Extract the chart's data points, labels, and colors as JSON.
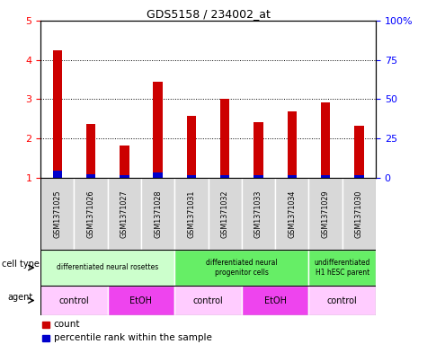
{
  "title": "GDS5158 / 234002_at",
  "samples": [
    "GSM1371025",
    "GSM1371026",
    "GSM1371027",
    "GSM1371028",
    "GSM1371031",
    "GSM1371032",
    "GSM1371033",
    "GSM1371034",
    "GSM1371029",
    "GSM1371030"
  ],
  "red_values": [
    4.25,
    2.38,
    1.82,
    3.45,
    2.58,
    3.02,
    2.42,
    2.68,
    2.92,
    2.32
  ],
  "blue_values": [
    1.18,
    1.08,
    1.07,
    1.13,
    1.06,
    1.07,
    1.07,
    1.07,
    1.07,
    1.07
  ],
  "ylim": [
    1,
    5
  ],
  "yticks": [
    1,
    2,
    3,
    4,
    5
  ],
  "y2labels": [
    "0",
    "25",
    "50",
    "75",
    "100%"
  ],
  "cell_type_groups": [
    {
      "label": "differentiated neural rosettes",
      "start": 0,
      "end": 4,
      "color": "#ccffcc"
    },
    {
      "label": "differentiated neural\nprogenitor cells",
      "start": 4,
      "end": 8,
      "color": "#66ee66"
    },
    {
      "label": "undifferentiated\nH1 hESC parent",
      "start": 8,
      "end": 10,
      "color": "#66ee66"
    }
  ],
  "agent_groups": [
    {
      "label": "control",
      "start": 0,
      "end": 2,
      "color": "#ffccff"
    },
    {
      "label": "EtOH",
      "start": 2,
      "end": 4,
      "color": "#ee44ee"
    },
    {
      "label": "control",
      "start": 4,
      "end": 6,
      "color": "#ffccff"
    },
    {
      "label": "EtOH",
      "start": 6,
      "end": 8,
      "color": "#ee44ee"
    },
    {
      "label": "control",
      "start": 8,
      "end": 10,
      "color": "#ffccff"
    }
  ],
  "bar_color_red": "#cc0000",
  "bar_color_blue": "#0000cc",
  "bar_width": 0.28,
  "label_cell_type": "cell type",
  "label_agent": "agent",
  "legend_count": "count",
  "legend_pct": "percentile rank within the sample"
}
